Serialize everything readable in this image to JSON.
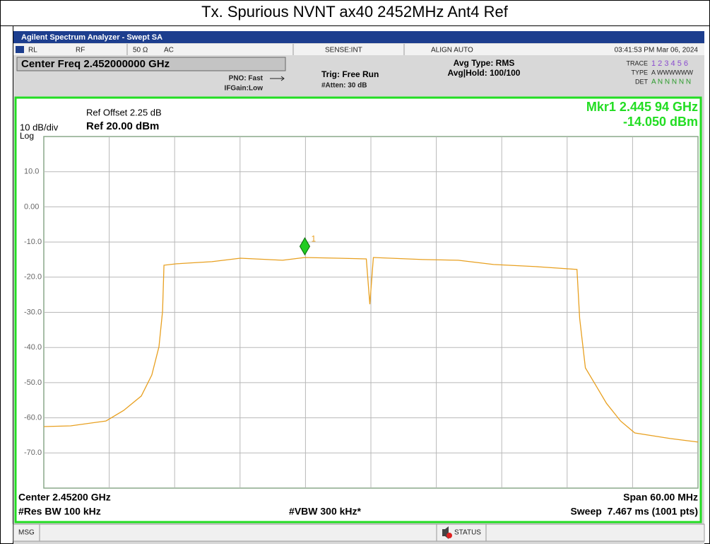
{
  "page_title": "Tx. Spurious NVNT ax40 2452MHz Ant4 Ref",
  "window_title": "Agilent Spectrum Analyzer - Swept SA",
  "status_row": {
    "rl": "RL",
    "rf": "RF",
    "impedance": "50 Ω",
    "coupling": "AC",
    "sense": "SENSE:INT",
    "align": "ALIGN AUTO",
    "timestamp": "03:41:53 PM Mar 06, 2024"
  },
  "settings": {
    "center_freq": "Center Freq 2.452000000 GHz",
    "pno": "PNO: Fast",
    "ifgain": "IFGain:Low",
    "trig": "Trig: Free Run",
    "atten": "#Atten: 30 dB",
    "avg_type": "Avg Type: RMS",
    "avg_hold": "Avg|Hold: 100/100",
    "trace_label": "TRACE",
    "trace_numbers": "1 2 3 4 5 6",
    "type_label": "TYPE",
    "type_value": "A WWWWWW",
    "det_label": "DET",
    "det_value": "A N N N N N"
  },
  "chart_data": {
    "type": "line",
    "ref_offset": "Ref Offset 2.25 dB",
    "scale": "10 dB/div",
    "ref_level": "Ref 20.00 dBm",
    "scale_type": "Log",
    "marker_freq": "Mkr1 2.445 94 GHz",
    "marker_level": "-14.050 dBm",
    "marker": {
      "label": "1",
      "x": 2.44594,
      "y": -14.05,
      "color": "#22cc22"
    },
    "xlim": [
      2.422,
      2.482
    ],
    "ylim": [
      -80,
      20
    ],
    "yticks": [
      {
        "value": 10,
        "label": "10.0"
      },
      {
        "value": 0,
        "label": "0.00"
      },
      {
        "value": -10,
        "label": "-10.0"
      },
      {
        "value": -20,
        "label": "-20.0"
      },
      {
        "value": -30,
        "label": "-30.0"
      },
      {
        "value": -40,
        "label": "-40.0"
      },
      {
        "value": -50,
        "label": "-50.0"
      },
      {
        "value": -60,
        "label": "-60.0"
      },
      {
        "value": -70,
        "label": "-70.0"
      }
    ],
    "grid": true,
    "x": [
      2.422,
      2.42446,
      2.4277,
      2.42932,
      2.43094,
      2.43191,
      2.43256,
      2.43289,
      2.43302,
      2.43418,
      2.43742,
      2.44002,
      2.4439,
      2.44594,
      2.44899,
      2.45158,
      2.4519,
      2.45223,
      2.45677,
      2.46001,
      2.46325,
      2.46714,
      2.4709,
      2.47115,
      2.47167,
      2.47264,
      2.47361,
      2.4749,
      2.4762,
      2.47944,
      2.482
    ],
    "series": [
      {
        "name": "Trace 1",
        "color": "#e8a020",
        "values": [
          -62.5,
          -62.3,
          -60.9,
          -57.9,
          -53.8,
          -47.8,
          -39.8,
          -29.7,
          -16.6,
          -16.2,
          -15.6,
          -14.6,
          -15.2,
          -14.4,
          -14.6,
          -14.8,
          -27.7,
          -14.4,
          -15.0,
          -15.2,
          -16.4,
          -17.0,
          -17.8,
          -31.7,
          -45.8,
          -50.8,
          -55.9,
          -60.9,
          -64.3,
          -65.9,
          -66.9
        ]
      }
    ],
    "center": "Center 2.45200 GHz",
    "span": "Span 60.00 MHz",
    "rbw": "#Res BW 100 kHz",
    "vbw": "#VBW 300 kHz*",
    "sweep": "Sweep  7.467 ms (1001 pts)"
  },
  "statusbar": {
    "msg": "MSG",
    "status": "STATUS"
  }
}
